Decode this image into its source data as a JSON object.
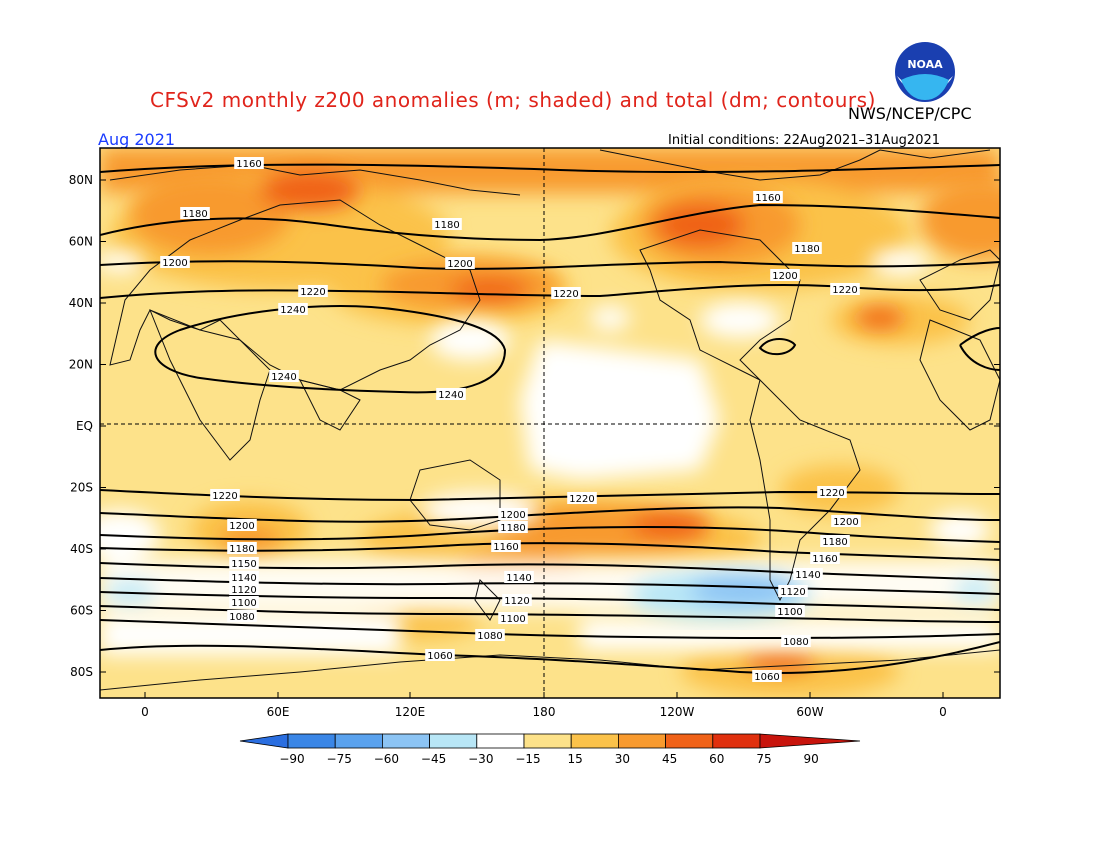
{
  "header": {
    "title": "CFSv2 monthly z200 anomalies (m; shaded) and total (dm; contours)",
    "agency": "NWS/NCEP/CPC",
    "logo_text": "NOAA",
    "period": "Aug 2021",
    "initial_conditions": "Initial conditions: 22Aug2021–31Aug2021"
  },
  "axes": {
    "lat_labels": [
      "80N",
      "60N",
      "40N",
      "20N",
      "EQ",
      "20S",
      "40S",
      "60S",
      "80S"
    ],
    "lon_labels": [
      "0",
      "60E",
      "120E",
      "180",
      "120W",
      "60W",
      "0"
    ]
  },
  "colorbar": {
    "labels": [
      "−90",
      "−75",
      "−60",
      "−45",
      "−30",
      "−15",
      "15",
      "30",
      "45",
      "60",
      "75",
      "90"
    ],
    "colors": [
      "#2a6ee0",
      "#3a86e6",
      "#5aa2ee",
      "#8cc4f4",
      "#b8e6f6",
      "#ffffff",
      "#fde28a",
      "#fbc24a",
      "#f89a2e",
      "#f06218",
      "#e0300e",
      "#c8140c"
    ]
  },
  "contour_labels": [
    "1160",
    "1160",
    "1180",
    "1180",
    "1180",
    "1200",
    "1200",
    "1200",
    "1220",
    "1220",
    "1220",
    "1240",
    "1240",
    "1240",
    "1220",
    "1220",
    "1220",
    "1200",
    "1200",
    "1200",
    "1180",
    "1180",
    "1180",
    "1160",
    "1150",
    "1160",
    "1140",
    "1140",
    "1140",
    "1120",
    "1120",
    "1120",
    "1100",
    "1100",
    "1100",
    "1080",
    "1080",
    "1080",
    "1060",
    "1060"
  ]
}
